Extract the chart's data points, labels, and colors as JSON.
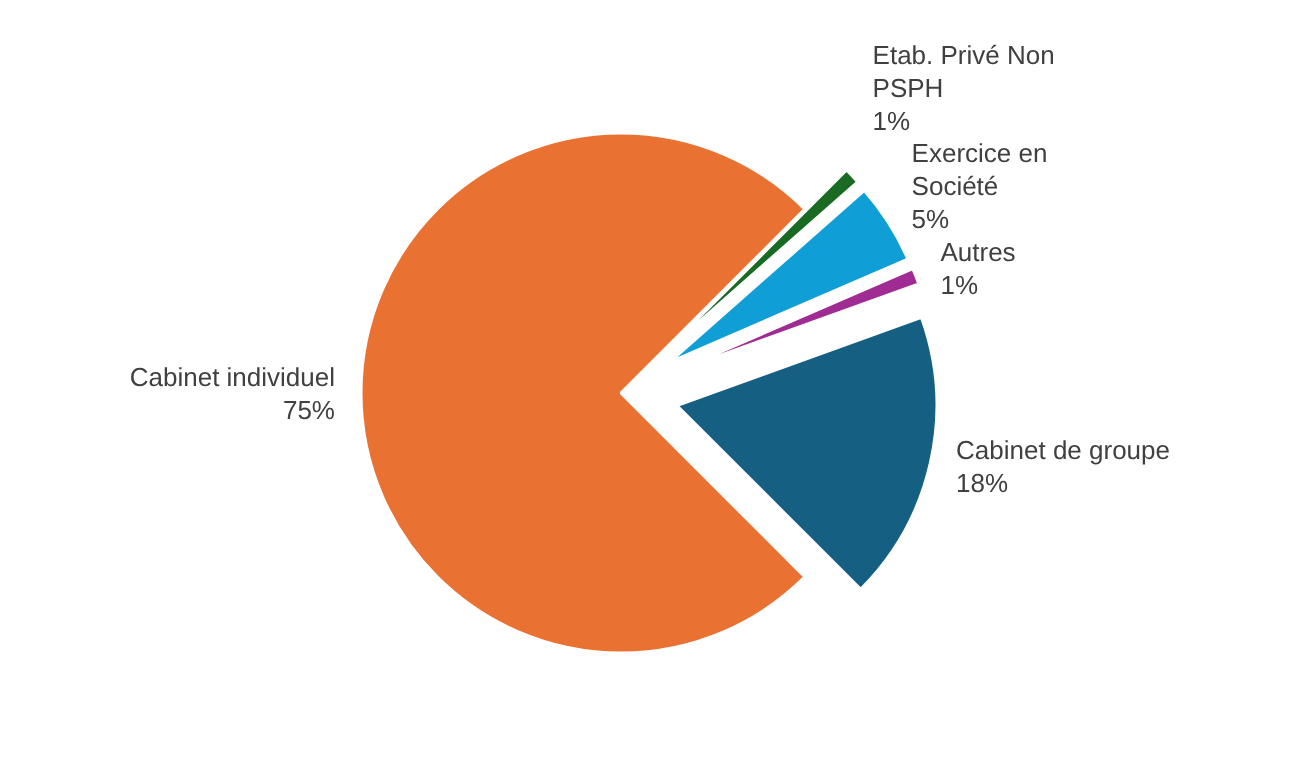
{
  "chart_data": {
    "type": "pie",
    "categories": [
      "Etab. Privé Non PSPH",
      "Exercice en Société",
      "Autres",
      "Cabinet de groupe",
      "Cabinet individuel"
    ],
    "values": [
      1,
      5,
      1,
      18,
      75
    ],
    "value_labels": [
      "1%",
      "5%",
      "1%",
      "18%",
      "75%"
    ],
    "colors": [
      "#196b24",
      "#0f9ed5",
      "#a02b93",
      "#156082",
      "#e97132"
    ]
  }
}
